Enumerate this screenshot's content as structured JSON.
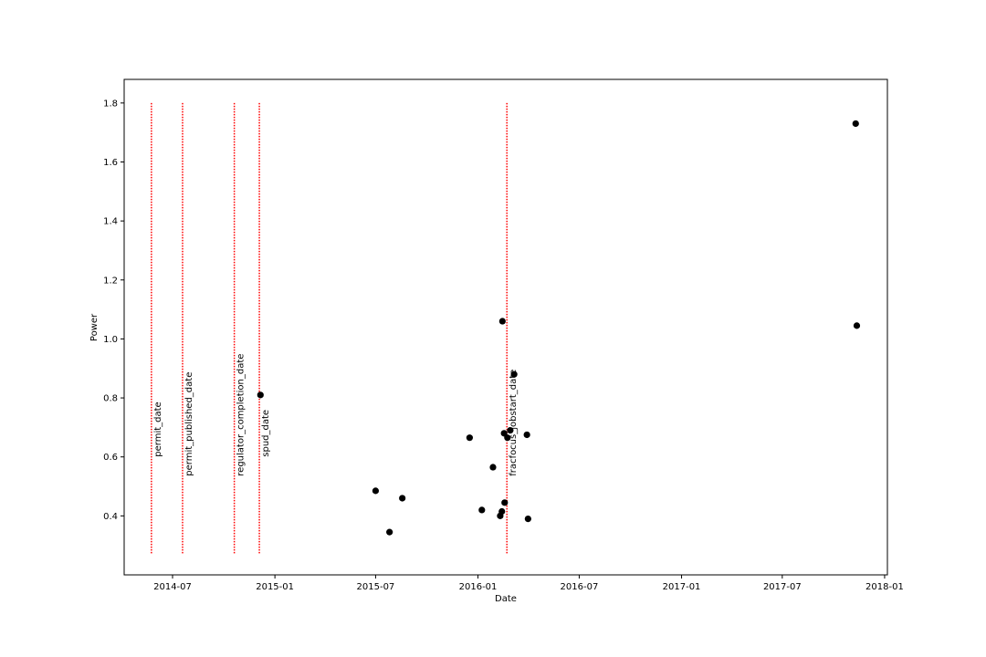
{
  "chart_data": {
    "type": "scatter",
    "xlabel": "Date",
    "ylabel": "Power",
    "xlim": [
      "2014-04-05",
      "2018-01-06"
    ],
    "ylim": [
      0.2,
      1.88
    ],
    "x_ticks": [
      "2014-07-01",
      "2015-01-01",
      "2015-07-01",
      "2016-01-01",
      "2016-07-01",
      "2017-01-01",
      "2017-07-01",
      "2018-01-01"
    ],
    "x_tick_labels": [
      "2014-07",
      "2015-01",
      "2015-07",
      "2016-01",
      "2016-07",
      "2017-01",
      "2017-07",
      "2018-01"
    ],
    "y_ticks": [
      0.4,
      0.6,
      0.8,
      1.0,
      1.2,
      1.4,
      1.6,
      1.8
    ],
    "y_tick_labels": [
      "0.4",
      "0.6",
      "0.8",
      "1.0",
      "1.2",
      "1.4",
      "1.6",
      "1.8"
    ],
    "grid": false,
    "point_color": "#000000",
    "event_line_color": "#ff0000",
    "event_lines": {
      "y_range": [
        0.27,
        1.8
      ],
      "items": [
        {
          "date": "2014-05-24",
          "label": "permit_date"
        },
        {
          "date": "2014-07-19",
          "label": "permit_published_date"
        },
        {
          "date": "2014-10-20",
          "label": "regulator_completion_date"
        },
        {
          "date": "2014-12-04",
          "label": "spud_date"
        },
        {
          "date": "2016-02-22",
          "label": "fracfocus_jobstart_date"
        }
      ]
    },
    "points": [
      {
        "x": "2014-12-06",
        "y": 0.81
      },
      {
        "x": "2015-07-01",
        "y": 0.485
      },
      {
        "x": "2015-07-26",
        "y": 0.345
      },
      {
        "x": "2015-08-18",
        "y": 0.46
      },
      {
        "x": "2015-12-17",
        "y": 0.665
      },
      {
        "x": "2016-01-08",
        "y": 0.42
      },
      {
        "x": "2016-01-28",
        "y": 0.565
      },
      {
        "x": "2016-02-10",
        "y": 0.4
      },
      {
        "x": "2016-02-14",
        "y": 1.06
      },
      {
        "x": "2016-02-13",
        "y": 0.415
      },
      {
        "x": "2016-02-17",
        "y": 0.68
      },
      {
        "x": "2016-02-18",
        "y": 0.445
      },
      {
        "x": "2016-02-23",
        "y": 0.665
      },
      {
        "x": "2016-02-28",
        "y": 0.69
      },
      {
        "x": "2016-03-06",
        "y": 0.88
      },
      {
        "x": "2016-03-29",
        "y": 0.675
      },
      {
        "x": "2016-03-31",
        "y": 0.39
      },
      {
        "x": "2017-11-10",
        "y": 1.73
      },
      {
        "x": "2017-11-12",
        "y": 1.045
      }
    ]
  }
}
